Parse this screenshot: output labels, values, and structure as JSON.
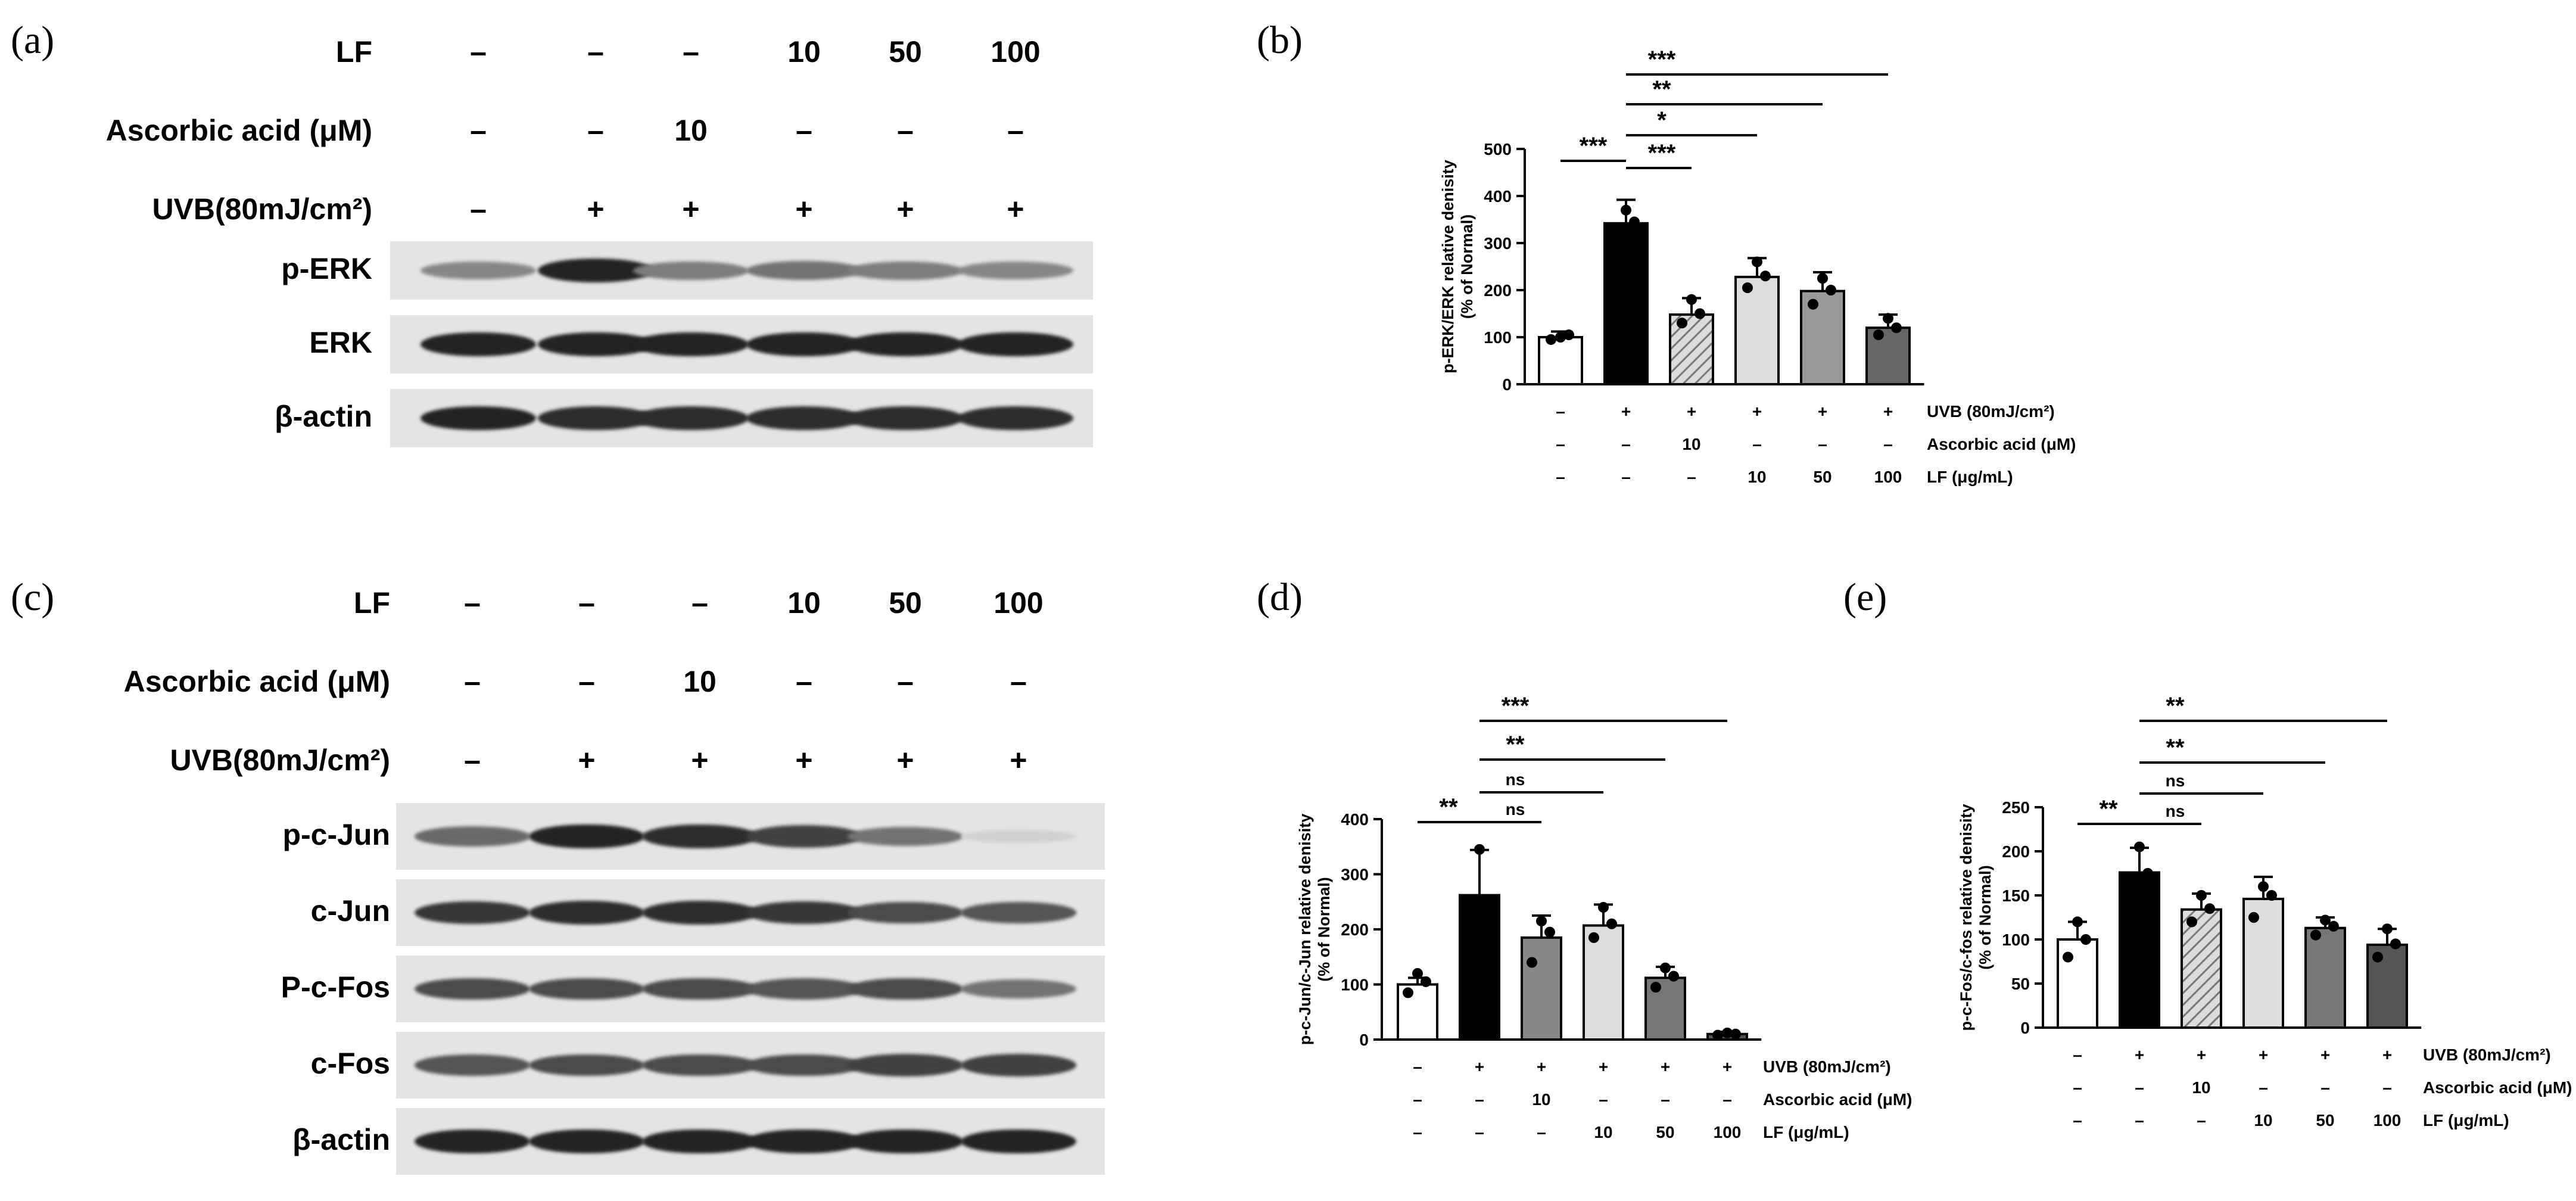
{
  "panels": {
    "a": {
      "letter": "(a)",
      "row_labels": [
        "LF",
        "Ascorbic acid (μM)",
        "UVB(80mJ/cm²)"
      ],
      "rows": [
        [
          "–",
          "–",
          "–",
          "10",
          "50",
          "100"
        ],
        [
          "–",
          "–",
          "10",
          "–",
          "–",
          "–"
        ],
        [
          "–",
          "+",
          "+",
          "+",
          "+",
          "+"
        ]
      ],
      "blots": [
        {
          "label": "p-ERK",
          "intensity": [
            0.45,
            0.95,
            0.5,
            0.55,
            0.5,
            0.45
          ]
        },
        {
          "label": "ERK",
          "intensity": [
            0.95,
            0.95,
            0.95,
            0.95,
            0.95,
            0.95
          ]
        },
        {
          "label": "β-actin",
          "intensity": [
            0.95,
            0.9,
            0.9,
            0.9,
            0.9,
            0.9
          ]
        }
      ]
    },
    "b": {
      "letter": "(b)"
    },
    "c": {
      "letter": "(c)",
      "row_labels": [
        "LF",
        "Ascorbic acid (μM)",
        "UVB(80mJ/cm²)"
      ],
      "rows": [
        [
          "–",
          "–",
          "–",
          "10",
          "50",
          "100"
        ],
        [
          "–",
          "–",
          "10",
          "–",
          "–",
          "–"
        ],
        [
          "–",
          "+",
          "+",
          "+",
          "+",
          "+"
        ]
      ],
      "blots": [
        {
          "label": "p-c-Jun",
          "intensity": [
            0.6,
            0.95,
            0.9,
            0.8,
            0.55,
            0.08
          ]
        },
        {
          "label": "c-Jun",
          "intensity": [
            0.85,
            0.9,
            0.9,
            0.85,
            0.75,
            0.7
          ]
        },
        {
          "label": "P-c-Fos",
          "intensity": [
            0.75,
            0.75,
            0.75,
            0.7,
            0.75,
            0.55
          ]
        },
        {
          "label": "c-Fos",
          "intensity": [
            0.7,
            0.75,
            0.75,
            0.75,
            0.8,
            0.8
          ]
        },
        {
          "label": "β-actin",
          "intensity": [
            0.95,
            0.95,
            0.95,
            0.95,
            0.95,
            0.95
          ]
        }
      ]
    },
    "d": {
      "letter": "(d)"
    },
    "e": {
      "letter": "(e)"
    }
  },
  "chart_data": [
    {
      "id": "b",
      "type": "bar",
      "ylabel": "p-ERK/ERK relative denisity\n(% of Normal)",
      "ylim": [
        0,
        500
      ],
      "yticks": [
        0,
        100,
        200,
        300,
        400,
        500
      ],
      "values": [
        100,
        342,
        148,
        228,
        198,
        120
      ],
      "errors": [
        12,
        50,
        35,
        40,
        40,
        28
      ],
      "points": [
        [
          95,
          105,
          100
        ],
        [
          310,
          345,
          370
        ],
        [
          130,
          150,
          180
        ],
        [
          205,
          230,
          260
        ],
        [
          170,
          200,
          225
        ],
        [
          105,
          120,
          140
        ]
      ],
      "fills": [
        "white",
        "#000000",
        "hatch",
        "#dddddd",
        "#999999",
        "#666666"
      ],
      "table_rows": [
        {
          "label": "UVB (80mJ/cm²)",
          "values": [
            "–",
            "+",
            "+",
            "+",
            "+",
            "+"
          ]
        },
        {
          "label": "Ascorbic acid (μM)",
          "values": [
            "–",
            "–",
            "10",
            "–",
            "–",
            "–"
          ]
        },
        {
          "label": "LF (μg/mL)",
          "values": [
            "–",
            "–",
            "–",
            "10",
            "50",
            "100"
          ]
        }
      ],
      "significance": [
        {
          "from": 0,
          "to": 1,
          "label": "***"
        },
        {
          "from": 1,
          "to": 2,
          "label": "***"
        },
        {
          "from": 1,
          "to": 3,
          "label": "*"
        },
        {
          "from": 1,
          "to": 4,
          "label": "**"
        },
        {
          "from": 1,
          "to": 5,
          "label": "***"
        }
      ]
    },
    {
      "id": "d",
      "type": "bar",
      "ylabel": "p-c-Jun/c-Jun relative denisity\n(% of Normal)",
      "ylim": [
        0,
        400
      ],
      "yticks": [
        0,
        100,
        200,
        300,
        400
      ],
      "values": [
        100,
        262,
        185,
        207,
        112,
        10
      ],
      "errors": [
        12,
        82,
        40,
        38,
        20,
        4
      ],
      "points": [
        [
          85,
          105,
          120
        ],
        [
          230,
          250,
          345
        ],
        [
          140,
          195,
          215
        ],
        [
          185,
          210,
          240
        ],
        [
          95,
          115,
          130
        ],
        [
          8,
          10,
          12
        ]
      ],
      "fills": [
        "white",
        "#000000",
        "#888888",
        "#dddddd",
        "#777777",
        "#555555"
      ],
      "table_rows": [
        {
          "label": "UVB (80mJ/cm²)",
          "values": [
            "–",
            "+",
            "+",
            "+",
            "+",
            "+"
          ]
        },
        {
          "label": "Ascorbic acid (μM)",
          "values": [
            "–",
            "–",
            "10",
            "–",
            "–",
            "–"
          ]
        },
        {
          "label": "LF (μg/mL)",
          "values": [
            "–",
            "–",
            "–",
            "10",
            "50",
            "100"
          ]
        }
      ],
      "significance": [
        {
          "from": 0,
          "to": 1,
          "label": "**"
        },
        {
          "from": 1,
          "to": 2,
          "label": "ns"
        },
        {
          "from": 1,
          "to": 3,
          "label": "ns"
        },
        {
          "from": 1,
          "to": 4,
          "label": "**"
        },
        {
          "from": 1,
          "to": 5,
          "label": "***"
        }
      ]
    },
    {
      "id": "e",
      "type": "bar",
      "ylabel": "p-c-Fos/c-fos relative denisity\n(% of Normal)",
      "ylim": [
        0,
        250
      ],
      "yticks": [
        0,
        50,
        100,
        150,
        200,
        250
      ],
      "values": [
        100,
        176,
        134,
        146,
        113,
        94
      ],
      "errors": [
        20,
        28,
        18,
        25,
        12,
        18
      ],
      "points": [
        [
          80,
          100,
          120
        ],
        [
          150,
          175,
          205
        ],
        [
          120,
          135,
          150
        ],
        [
          125,
          150,
          160
        ],
        [
          105,
          115,
          122
        ],
        [
          80,
          95,
          112
        ]
      ],
      "fills": [
        "white",
        "#000000",
        "hatch",
        "#dddddd",
        "#777777",
        "#555555"
      ],
      "table_rows": [
        {
          "label": "UVB (80mJ/cm²)",
          "values": [
            "–",
            "+",
            "+",
            "+",
            "+",
            "+"
          ]
        },
        {
          "label": "Ascorbic acid (μM)",
          "values": [
            "–",
            "–",
            "10",
            "–",
            "–",
            "–"
          ]
        },
        {
          "label": "LF (μg/mL)",
          "values": [
            "–",
            "–",
            "–",
            "10",
            "50",
            "100"
          ]
        }
      ],
      "significance": [
        {
          "from": 0,
          "to": 1,
          "label": "**"
        },
        {
          "from": 1,
          "to": 2,
          "label": "ns"
        },
        {
          "from": 1,
          "to": 3,
          "label": "ns"
        },
        {
          "from": 1,
          "to": 4,
          "label": "**"
        },
        {
          "from": 1,
          "to": 5,
          "label": "**"
        }
      ]
    }
  ]
}
